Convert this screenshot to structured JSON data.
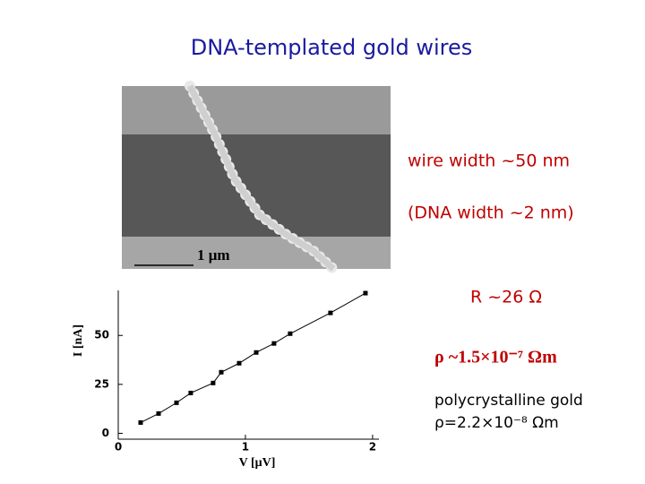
{
  "chart_data": {
    "type": "line",
    "title": "DNA-templated gold wires",
    "x_label": "V [μV]",
    "y_label": "I [nA]",
    "annotations": [
      "wire width ~50 nm",
      "(DNA width ~2 nm)",
      "R ~26 Ω",
      "ρ ~1.5×10⁻⁷ Ωm",
      "polycrystalline gold",
      "ρ=2.2×10⁻⁸ Ωm"
    ],
    "x": [
      0.176,
      0.317,
      0.458,
      0.57,
      0.746,
      0.81,
      0.951,
      1.085,
      1.225,
      1.352,
      1.669,
      1.944
    ],
    "series": [
      {
        "color": "#000000",
        "values": [
          5.5,
          10.1,
          15.6,
          20.6,
          25.7,
          31.2,
          35.8,
          41.3,
          45.9,
          50.9,
          61.5,
          71.6
        ]
      }
    ],
    "xlim": [
      0,
      2.05
    ],
    "ylim": [
      -3,
      73
    ],
    "xticks": [
      0,
      1,
      2
    ],
    "yticks": [
      0,
      25,
      50
    ]
  },
  "image": {
    "scale_label": "1 μm"
  }
}
